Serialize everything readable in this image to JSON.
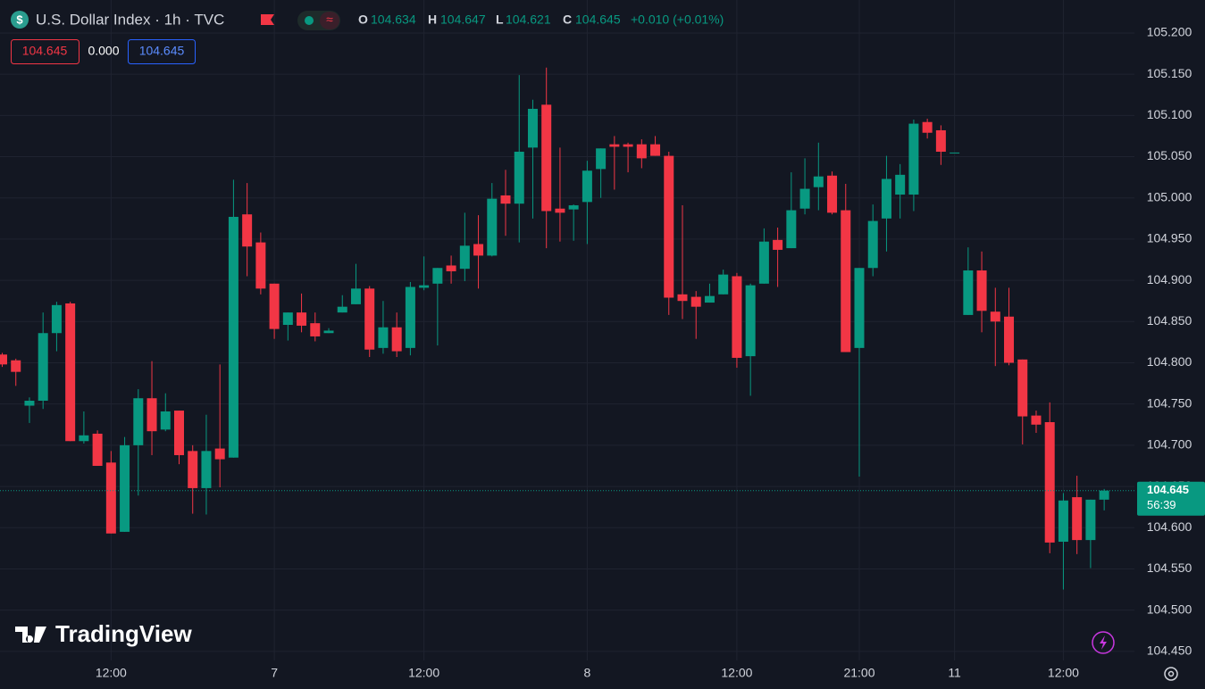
{
  "chart_data": {
    "type": "candlestick",
    "title": "U.S. Dollar Index · 1h · TVC",
    "ohlc_legend": [
      {
        "label": "O",
        "value": "104.634"
      },
      {
        "label": "H",
        "value": "104.647"
      },
      {
        "label": "L",
        "value": "104.621"
      },
      {
        "label": "C",
        "value": "104.645"
      }
    ],
    "change": "+0.010 (+0.01%)",
    "badges": [
      "104.645",
      "0.000",
      "104.645"
    ],
    "last_price": {
      "value": 104.645,
      "label": "104.645",
      "countdown": "56:39"
    },
    "watermark": "TradingView",
    "up_color": "#089981",
    "down_color": "#f23645",
    "grid": true,
    "categories": [
      null,
      null,
      null,
      null,
      null,
      null,
      null,
      null,
      "12:00",
      null,
      null,
      null,
      null,
      null,
      null,
      null,
      null,
      null,
      null,
      null,
      "7",
      null,
      null,
      null,
      null,
      null,
      null,
      null,
      null,
      null,
      null,
      "12:00",
      null,
      null,
      null,
      null,
      null,
      null,
      null,
      null,
      null,
      null,
      null,
      "8",
      null,
      null,
      null,
      null,
      null,
      null,
      null,
      null,
      null,
      null,
      "12:00",
      null,
      null,
      null,
      null,
      null,
      null,
      null,
      null,
      "21:00",
      null,
      null,
      null,
      null,
      null,
      null,
      "11",
      null,
      null,
      null,
      null,
      null,
      null,
      null,
      "12:00",
      null,
      null,
      null
    ],
    "open": [
      104.81,
      104.803,
      104.748,
      104.754,
      104.836,
      104.872,
      104.705,
      104.714,
      104.679,
      104.595,
      104.7,
      104.757,
      104.719,
      104.742,
      104.693,
      104.648,
      104.696,
      104.685,
      104.98,
      104.946,
      104.896,
      104.846,
      104.861,
      104.848,
      104.836,
      104.861,
      104.871,
      104.89,
      104.818,
      104.843,
      104.818,
      104.891,
      104.896,
      104.918,
      104.914,
      104.944,
      104.93,
      105.003,
      104.993,
      105.061,
      105.113,
      104.987,
      104.986,
      104.995,
      105.035,
      105.065,
      105.065,
      105.065,
      105.065,
      105.051,
      104.883,
      104.88,
      104.873,
      104.883,
      104.905,
      104.808,
      104.896,
      104.949,
      104.939,
      104.987,
      105.013,
      105.027,
      104.985,
      104.818,
      104.915,
      104.975,
      105.004,
      105.004,
      105.092,
      105.082,
      105.055,
      104.858,
      104.912,
      104.862,
      104.856,
      104.804,
      104.736,
      104.728,
      104.583,
      104.637,
      104.585,
      104.634
    ],
    "high": [
      104.812,
      104.805,
      104.758,
      104.861,
      104.874,
      104.874,
      104.741,
      104.718,
      104.693,
      104.71,
      104.768,
      104.802,
      104.763,
      104.742,
      104.7,
      104.737,
      104.798,
      105.022,
      105.018,
      104.958,
      104.896,
      104.861,
      104.884,
      104.861,
      104.842,
      104.882,
      104.92,
      104.893,
      104.875,
      104.861,
      104.898,
      104.929,
      104.915,
      104.93,
      104.982,
      104.979,
      105.018,
      105.034,
      105.149,
      105.119,
      105.158,
      105.061,
      104.992,
      105.045,
      105.06,
      105.075,
      105.067,
      105.071,
      105.075,
      105.056,
      104.991,
      104.887,
      104.896,
      104.913,
      104.909,
      104.896,
      104.963,
      104.964,
      105.031,
      105.048,
      105.067,
      105.032,
      105.017,
      104.915,
      104.992,
      105.051,
      105.041,
      105.095,
      105.096,
      105.088,
      105.055,
      104.94,
      104.935,
      104.891,
      104.891,
      104.804,
      104.742,
      104.752,
      104.642,
      104.663,
      104.634,
      104.647
    ],
    "low": [
      104.795,
      104.772,
      104.727,
      104.744,
      104.814,
      104.705,
      104.702,
      104.675,
      104.593,
      104.595,
      104.639,
      104.688,
      104.717,
      104.677,
      104.617,
      104.616,
      104.649,
      104.685,
      104.905,
      104.883,
      104.829,
      104.827,
      104.837,
      104.826,
      104.836,
      104.861,
      104.871,
      104.807,
      104.811,
      104.807,
      104.809,
      104.888,
      104.821,
      104.896,
      104.899,
      104.89,
      104.929,
      104.954,
      104.946,
      104.975,
      104.939,
      104.947,
      104.948,
      104.944,
      105.0,
      105.01,
      105.031,
      105.036,
      105.051,
      104.858,
      104.853,
      104.829,
      104.873,
      104.883,
      104.794,
      104.76,
      104.896,
      104.892,
      104.939,
      104.98,
      104.985,
      104.98,
      104.813,
      104.662,
      104.905,
      104.935,
      104.975,
      104.984,
      105.072,
      105.04,
      105.055,
      104.858,
      104.837,
      104.796,
      104.797,
      104.701,
      104.715,
      104.569,
      104.525,
      104.568,
      104.551,
      104.621
    ],
    "close": [
      104.798,
      104.789,
      104.754,
      104.836,
      104.87,
      104.705,
      104.712,
      104.675,
      104.593,
      104.7,
      104.757,
      104.717,
      104.741,
      104.688,
      104.648,
      104.693,
      104.683,
      104.977,
      104.941,
      104.89,
      104.841,
      104.861,
      104.845,
      104.832,
      104.839,
      104.868,
      104.89,
      104.816,
      104.843,
      104.814,
      104.892,
      104.894,
      104.915,
      104.911,
      104.942,
      104.93,
      104.999,
      104.993,
      105.056,
      105.108,
      104.984,
      104.982,
      104.991,
      105.033,
      105.06,
      105.062,
      105.062,
      105.048,
      105.051,
      104.879,
      104.875,
      104.868,
      104.881,
      104.907,
      104.806,
      104.894,
      104.947,
      104.937,
      104.985,
      105.011,
      105.026,
      104.982,
      104.813,
      104.915,
      104.972,
      105.023,
      105.028,
      105.09,
      105.079,
      105.056,
      105.055,
      104.912,
      104.863,
      104.85,
      104.8,
      104.735,
      104.725,
      104.582,
      104.633,
      104.585,
      104.634,
      104.645
    ],
    "ylim": [
      104.439,
      105.24
    ],
    "yticks": [
      {
        "value": 104.45,
        "label": "104.450"
      },
      {
        "value": 104.5,
        "label": "104.500"
      },
      {
        "value": 104.55,
        "label": "104.550"
      },
      {
        "value": 104.6,
        "label": "104.600"
      },
      {
        "value": 104.65,
        "label": "104.650"
      },
      {
        "value": 104.7,
        "label": "104.700"
      },
      {
        "value": 104.75,
        "label": "104.750"
      },
      {
        "value": 104.8,
        "label": "104.800"
      },
      {
        "value": 104.85,
        "label": "104.850"
      },
      {
        "value": 104.9,
        "label": "104.900"
      },
      {
        "value": 104.95,
        "label": "104.950"
      },
      {
        "value": 105.0,
        "label": "105.000"
      },
      {
        "value": 105.05,
        "label": "105.050"
      },
      {
        "value": 105.1,
        "label": "105.100"
      },
      {
        "value": 105.15,
        "label": "105.150"
      },
      {
        "value": 105.2,
        "label": "105.200"
      }
    ]
  }
}
